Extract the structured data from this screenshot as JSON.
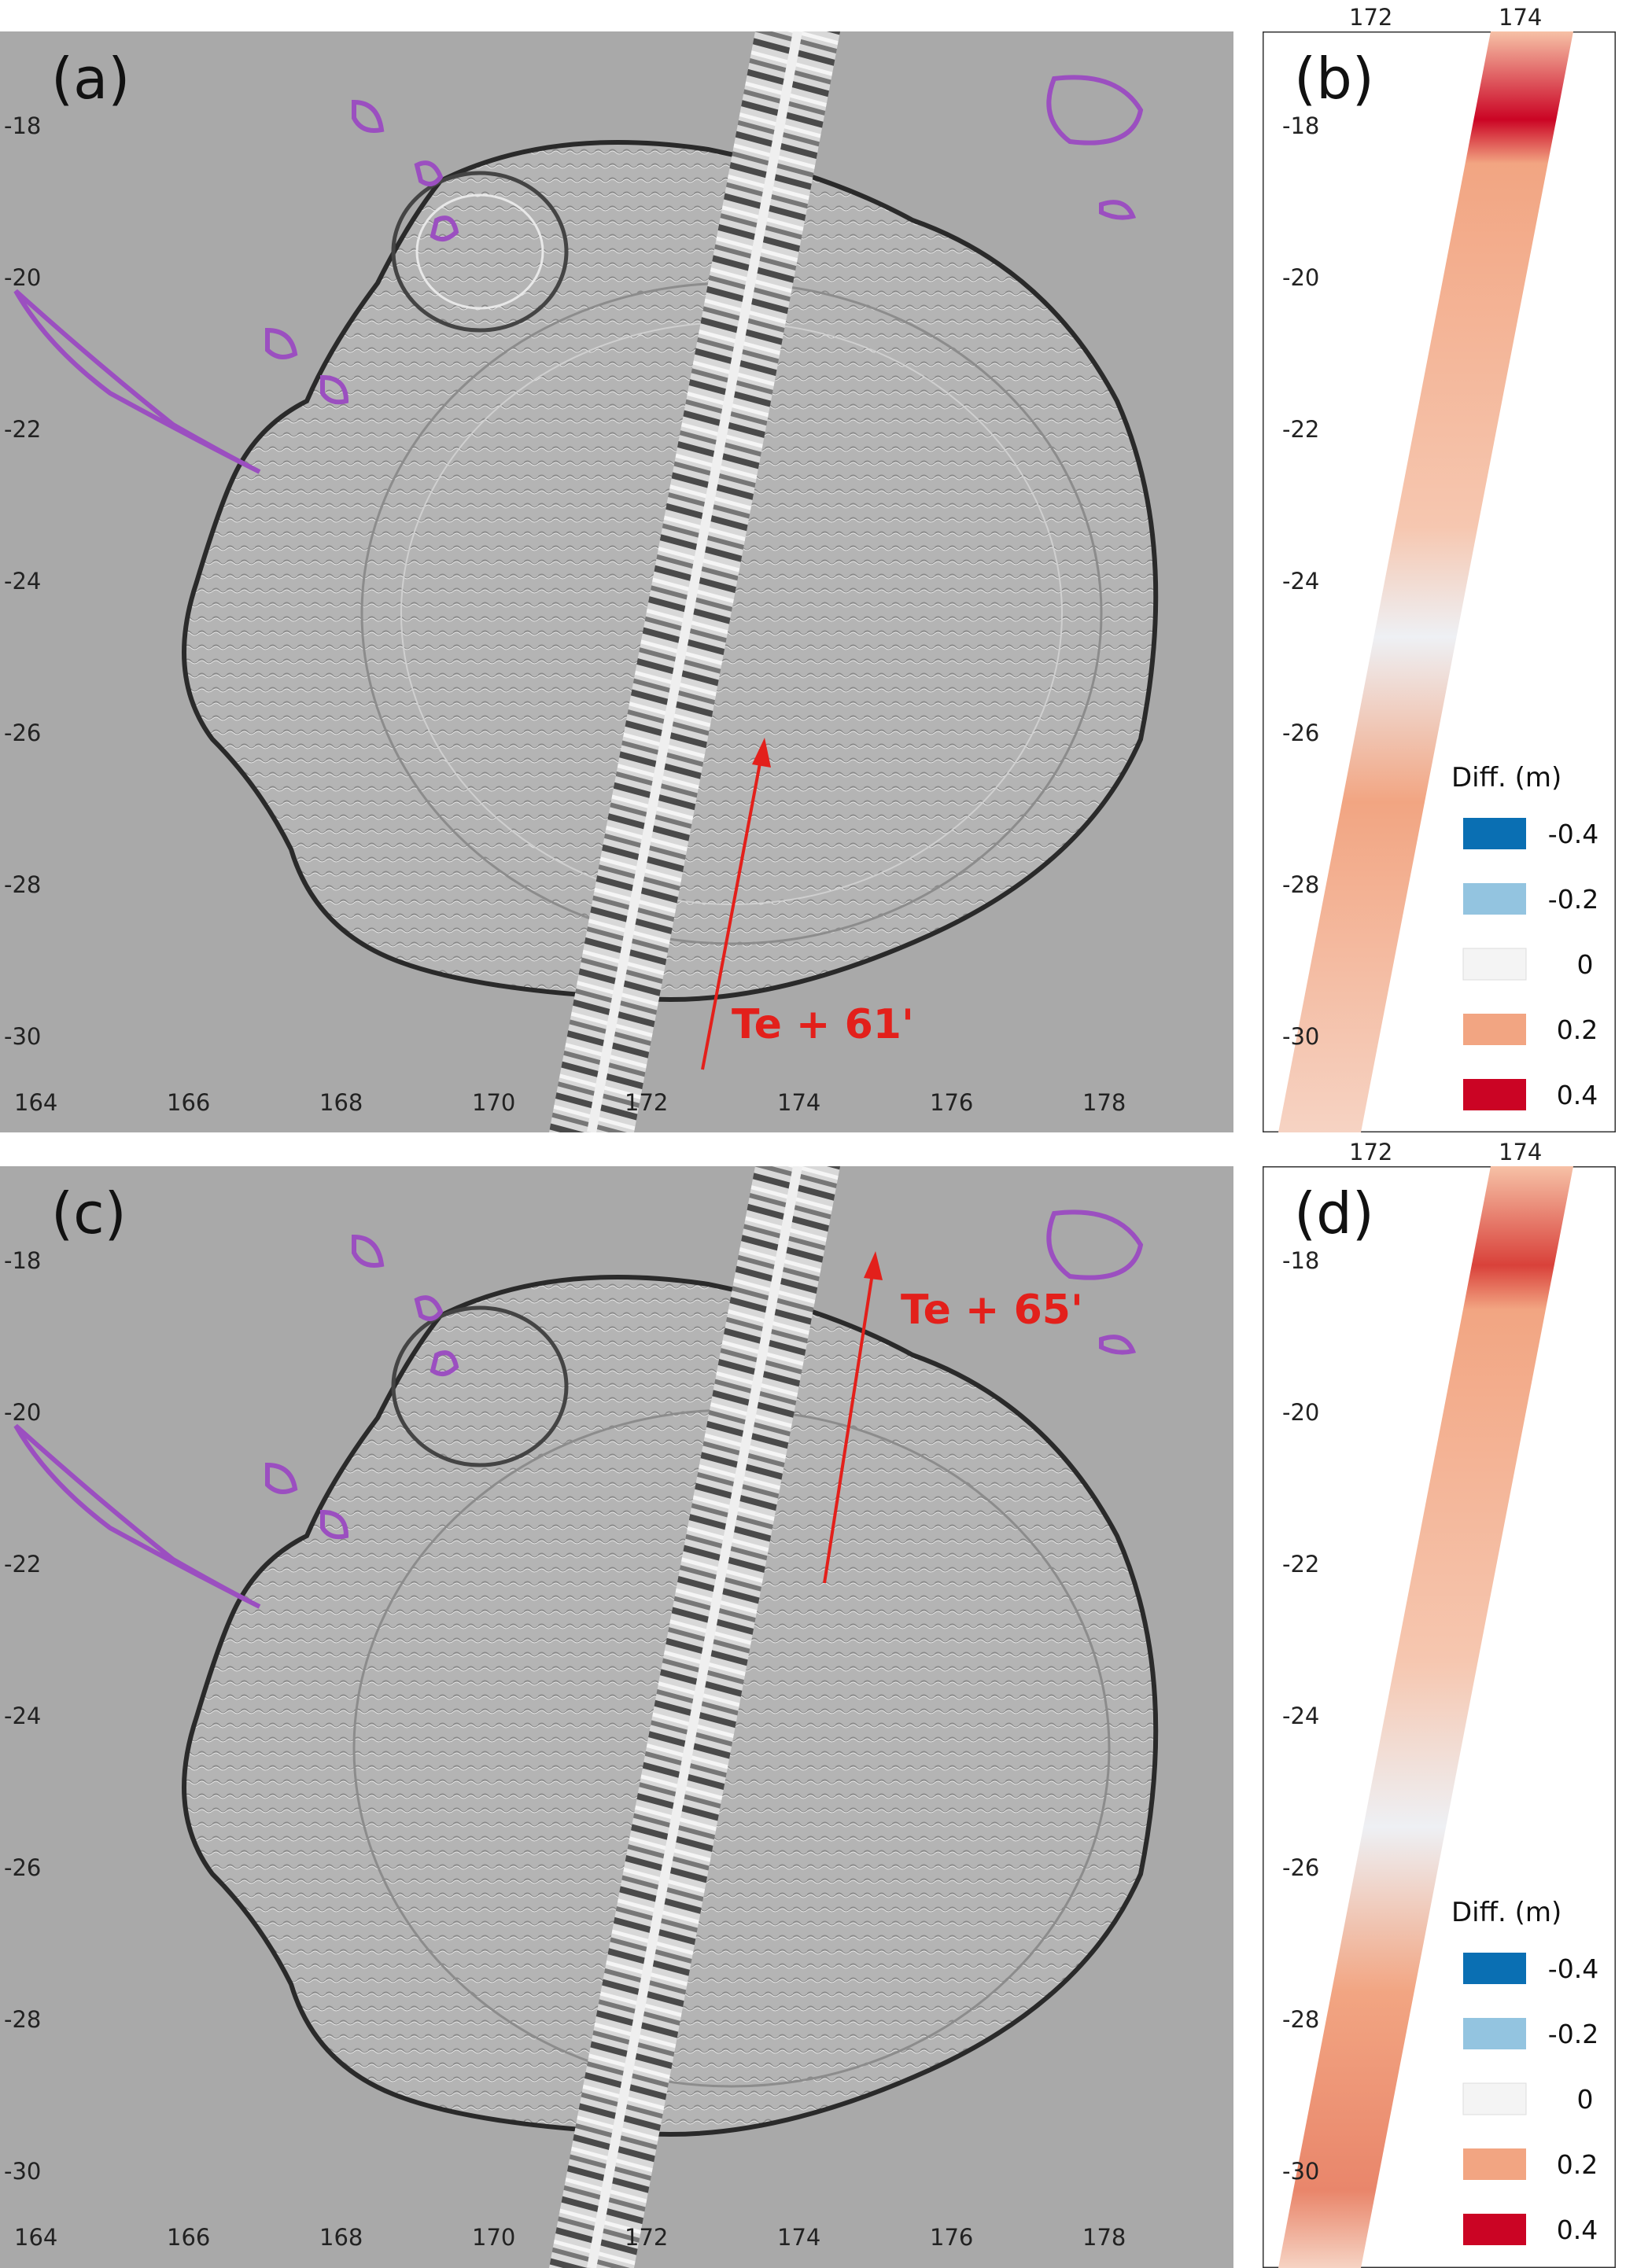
{
  "panels": {
    "a": {
      "tag": "(a)",
      "time_label": "Te + 61'"
    },
    "b": {
      "tag": "(b)"
    },
    "c": {
      "tag": "(c)",
      "time_label": "Te + 65'"
    },
    "d": {
      "tag": "(d)"
    }
  },
  "map_axes": {
    "lon_ticks": [
      "164",
      "166",
      "168",
      "170",
      "172",
      "174",
      "176",
      "178"
    ],
    "lat_ticks": [
      "-18",
      "-20",
      "-22",
      "-24",
      "-26",
      "-28",
      "-30"
    ]
  },
  "strip_axes": {
    "lon_ticks": [
      "172",
      "174"
    ],
    "lat_ticks": [
      "-18",
      "-20",
      "-22",
      "-24",
      "-26",
      "-28",
      "-30"
    ]
  },
  "legend": {
    "title": "Diff. (m)",
    "items": [
      {
        "value": "-0.4",
        "color": "#0a6fb3"
      },
      {
        "value": "-0.2",
        "color": "#93c4e0"
      },
      {
        "value": "0",
        "color": "#f4f4f4"
      },
      {
        "value": "0.2",
        "color": "#f2a582"
      },
      {
        "value": "0.4",
        "color": "#cb0424"
      }
    ]
  },
  "colors": {
    "map_background": "#a9a9a9",
    "coastline": "#9b4fc0",
    "arrow": "#e3201b"
  }
}
